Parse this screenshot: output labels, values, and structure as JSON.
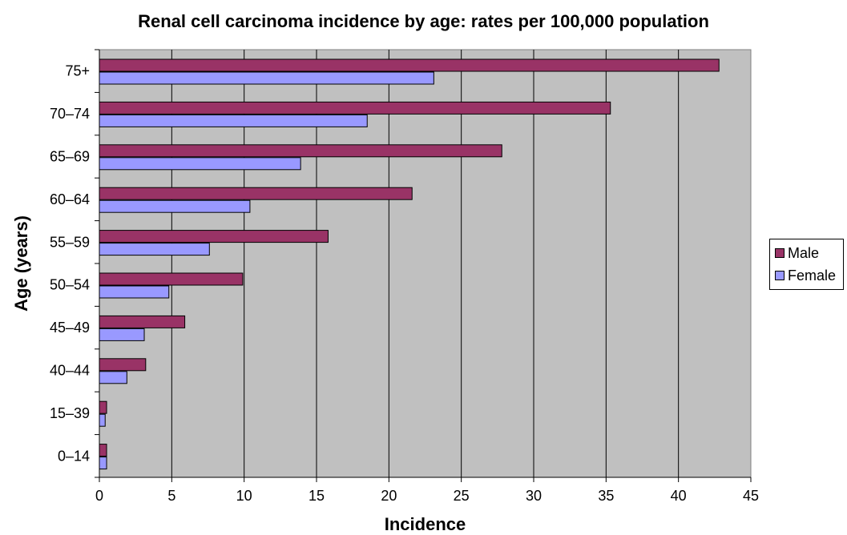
{
  "chart_data": {
    "type": "bar",
    "orientation": "horizontal",
    "title": "Renal cell carcinoma incidence by age: rates per 100,000 population",
    "xlabel": "Incidence",
    "ylabel": "Age (years)",
    "xlim": [
      0,
      45
    ],
    "xticks": [
      "0",
      "5",
      "10",
      "15",
      "20",
      "25",
      "30",
      "35",
      "40",
      "45"
    ],
    "categories": [
      "0–14",
      "15–39",
      "40–44",
      "45–49",
      "50–54",
      "55–59",
      "60–64",
      "65–69",
      "70–74",
      "75+"
    ],
    "series": [
      {
        "name": "Male",
        "color": "#993366",
        "values": [
          0.5,
          0.5,
          3.2,
          5.9,
          9.9,
          15.8,
          21.6,
          27.8,
          35.3,
          42.8
        ]
      },
      {
        "name": "Female",
        "color": "#9999ff",
        "values": [
          0.5,
          0.4,
          1.9,
          3.1,
          4.8,
          7.6,
          10.4,
          13.9,
          18.5,
          23.1
        ]
      }
    ],
    "grid": "vertical",
    "plot_background": "#c0c0c0",
    "legend_position": "right"
  }
}
